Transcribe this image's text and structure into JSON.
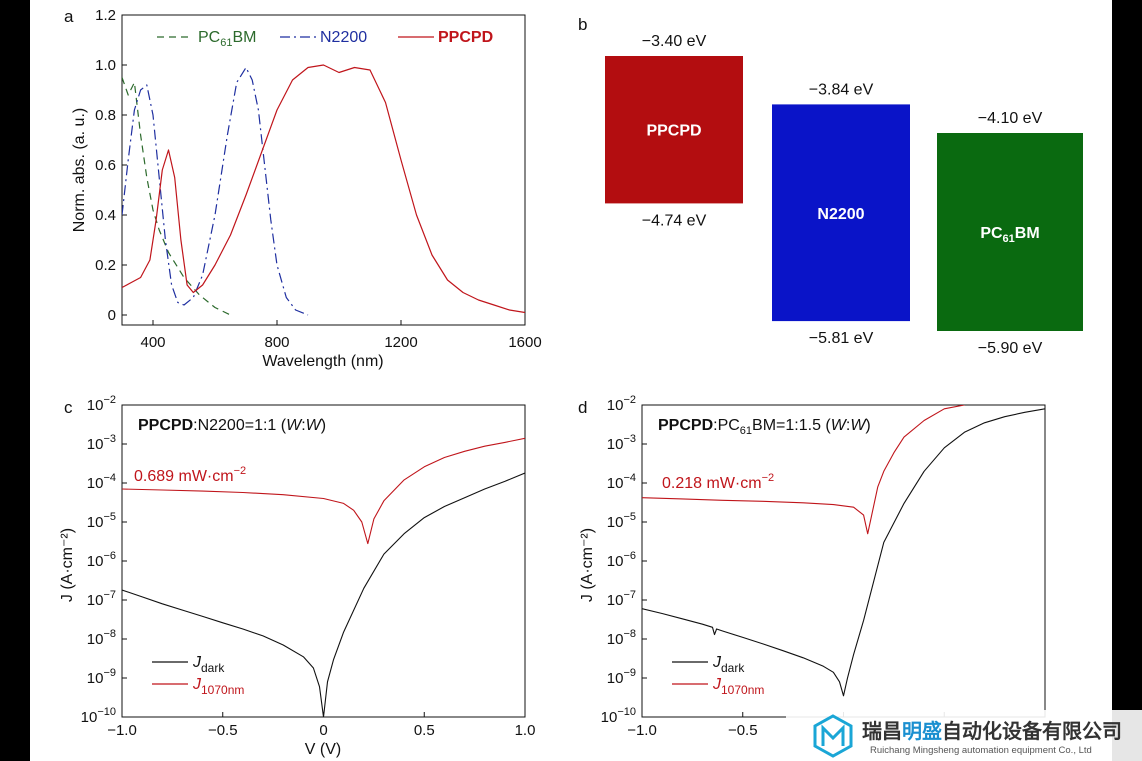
{
  "chart_data": [
    {
      "panel": "a",
      "type": "line",
      "xlabel": "Wavelength (nm)",
      "ylabel": "Norm. abs. (a. u.)",
      "xlim": [
        300,
        1600
      ],
      "ylim": [
        -0.04,
        1.2
      ],
      "xticks": [
        "400",
        "800",
        "1200",
        "1600"
      ],
      "yticks": [
        "0",
        "0.2",
        "0.4",
        "0.6",
        "0.8",
        "1.0",
        "1.2"
      ],
      "legend_position": "top",
      "series": [
        {
          "name": "PC",
          "sub": "61",
          "name_tail": "BM",
          "color": "#2c6a2c",
          "dash": "7,5",
          "x": [
            300,
            320,
            340,
            360,
            380,
            400,
            420,
            450,
            500,
            550,
            600,
            650
          ],
          "y": [
            0.95,
            0.88,
            0.93,
            0.72,
            0.55,
            0.42,
            0.34,
            0.25,
            0.15,
            0.08,
            0.03,
            0.0
          ]
        },
        {
          "name": "N2200",
          "color": "#1f2fa0",
          "dash": "10,4,2,4",
          "x": [
            300,
            320,
            340,
            360,
            380,
            400,
            420,
            440,
            460,
            480,
            500,
            530,
            560,
            600,
            640,
            670,
            700,
            720,
            740,
            760,
            780,
            800,
            830,
            860,
            900
          ],
          "y": [
            0.4,
            0.62,
            0.82,
            0.9,
            0.92,
            0.8,
            0.55,
            0.3,
            0.12,
            0.05,
            0.04,
            0.07,
            0.16,
            0.4,
            0.72,
            0.93,
            0.99,
            0.94,
            0.82,
            0.6,
            0.38,
            0.2,
            0.07,
            0.02,
            0.0
          ]
        },
        {
          "name": "PPCPD",
          "color": "#c0151b",
          "dash": "",
          "x": [
            300,
            330,
            360,
            390,
            410,
            430,
            450,
            470,
            490,
            510,
            530,
            560,
            600,
            650,
            700,
            750,
            800,
            850,
            900,
            950,
            1000,
            1050,
            1100,
            1150,
            1200,
            1250,
            1300,
            1350,
            1400,
            1450,
            1500,
            1550,
            1600
          ],
          "y": [
            0.11,
            0.13,
            0.15,
            0.22,
            0.38,
            0.58,
            0.66,
            0.55,
            0.3,
            0.12,
            0.09,
            0.12,
            0.2,
            0.32,
            0.48,
            0.65,
            0.82,
            0.94,
            0.99,
            1.0,
            0.97,
            0.99,
            0.98,
            0.85,
            0.62,
            0.4,
            0.24,
            0.14,
            0.09,
            0.06,
            0.04,
            0.02,
            0.01
          ]
        }
      ]
    },
    {
      "panel": "b",
      "type": "bar",
      "title": "",
      "ylim_eV": [
        -6.0,
        -3.2
      ],
      "levels": [
        {
          "name": "PPCPD",
          "top": -3.4,
          "bottom": -4.74,
          "top_label": "−3.40 eV",
          "bottom_label": "−4.74 eV",
          "color": "#b30d10"
        },
        {
          "name": "N2200",
          "top": -3.84,
          "bottom": -5.81,
          "top_label": "−3.84 eV",
          "bottom_label": "−5.81 eV",
          "color": "#0a14c8"
        },
        {
          "name": "PC",
          "sub": "61",
          "name_tail": "BM",
          "top": -4.1,
          "bottom": -5.9,
          "top_label": "−4.10 eV",
          "bottom_label": "−5.90 eV",
          "color": "#0a6a10"
        }
      ]
    },
    {
      "panel": "c",
      "type": "line",
      "yscale": "log",
      "xlabel": "V (V)",
      "ylabel": "J (A·cm⁻²)",
      "xlim": [
        -1.0,
        1.0
      ],
      "ylim_log10": [
        -10,
        -2
      ],
      "xticks": [
        "−1.0",
        "−0.5",
        "0",
        "0.5",
        "1.0"
      ],
      "blend_bold": "PPCPD",
      "blend_rest": ":N2200=1:1 (",
      "blend_italic1": "W",
      "blend_colon": ":",
      "blend_italic2": "W",
      "blend_close": ")",
      "intensity_label": "0.689 mW·cm",
      "intensity_exp": "−2",
      "legend_dark_main": "J",
      "legend_dark_sub": "dark",
      "legend_light_main": "J",
      "legend_light_sub": "1070nm",
      "series": [
        {
          "name": "J_dark",
          "color": "#111111",
          "x": [
            -1.0,
            -0.9,
            -0.8,
            -0.7,
            -0.6,
            -0.5,
            -0.4,
            -0.3,
            -0.2,
            -0.1,
            -0.05,
            -0.02,
            0.0,
            0.02,
            0.05,
            0.1,
            0.2,
            0.3,
            0.4,
            0.5,
            0.6,
            0.7,
            0.8,
            0.9,
            1.0
          ],
          "y": [
            1.8e-07,
            1.2e-07,
            8e-08,
            5.5e-08,
            3.8e-08,
            2.6e-08,
            1.8e-08,
            1.2e-08,
            7e-09,
            3.5e-09,
            1.8e-09,
            6e-10,
            1e-10,
            8e-10,
            3e-09,
            1.5e-08,
            2e-07,
            1.5e-06,
            5e-06,
            1.3e-05,
            2.5e-05,
            4.2e-05,
            7e-05,
            0.00011,
            0.00018
          ]
        },
        {
          "name": "J_1070nm",
          "color": "#c0151b",
          "x": [
            -1.0,
            -0.8,
            -0.6,
            -0.4,
            -0.2,
            0.0,
            0.1,
            0.15,
            0.19,
            0.22,
            0.25,
            0.3,
            0.4,
            0.5,
            0.6,
            0.7,
            0.8,
            0.9,
            1.0
          ],
          "y": [
            7e-05,
            6.6e-05,
            6.2e-05,
            5.7e-05,
            5e-05,
            4e-05,
            3e-05,
            2e-05,
            1e-05,
            2.8e-06,
            1.2e-05,
            3.5e-05,
            0.00012,
            0.00026,
            0.00045,
            0.00065,
            0.00088,
            0.0011,
            0.0014
          ]
        }
      ]
    },
    {
      "panel": "d",
      "type": "line",
      "yscale": "log",
      "xlabel": "V (V)",
      "ylabel": "J (A·cm⁻²)",
      "xlim": [
        -1.0,
        1.0
      ],
      "ylim_log10": [
        -10,
        -2
      ],
      "xticks": [
        "−1.0",
        "−0.5"
      ],
      "blend_bold": "PPCPD",
      "blend_rest": ":PC",
      "blend_sub": "61",
      "blend_rest2": "BM=1:1.5 (",
      "blend_italic1": "W",
      "blend_colon": ":",
      "blend_italic2": "W",
      "blend_close": ")",
      "intensity_label": "0.218 mW·cm",
      "intensity_exp": "−2",
      "legend_dark_main": "J",
      "legend_dark_sub": "dark",
      "legend_light_main": "J",
      "legend_light_sub": "1070nm",
      "series": [
        {
          "name": "J_dark",
          "color": "#111111",
          "x": [
            -1.0,
            -0.9,
            -0.8,
            -0.7,
            -0.65,
            -0.64,
            -0.63,
            -0.6,
            -0.5,
            -0.4,
            -0.3,
            -0.2,
            -0.1,
            -0.05,
            -0.02,
            0.0,
            0.02,
            0.05,
            0.1,
            0.15,
            0.2,
            0.3,
            0.4,
            0.5,
            0.6,
            0.7,
            0.8,
            0.9,
            1.0
          ],
          "y": [
            6e-08,
            4.5e-08,
            3.3e-08,
            2.4e-08,
            2e-08,
            1.3e-08,
            1.8e-08,
            1.6e-08,
            1.1e-08,
            7.5e-09,
            5e-09,
            3.3e-09,
            2e-09,
            1.4e-09,
            8e-10,
            3.5e-10,
            1e-09,
            4e-09,
            3e-08,
            3e-07,
            3e-06,
            3e-05,
            0.0002,
            0.0008,
            0.002,
            0.0035,
            0.005,
            0.0065,
            0.008
          ]
        },
        {
          "name": "J_1070nm",
          "color": "#c0151b",
          "x": [
            -1.0,
            -0.8,
            -0.6,
            -0.4,
            -0.2,
            -0.05,
            0.05,
            0.1,
            0.12,
            0.14,
            0.17,
            0.2,
            0.25,
            0.3,
            0.4,
            0.5,
            0.6
          ],
          "y": [
            4.2e-05,
            3.9e-05,
            3.6e-05,
            3.4e-05,
            3.1e-05,
            2.8e-05,
            2.4e-05,
            1.5e-05,
            5e-06,
            1.5e-05,
            8e-05,
            0.0002,
            0.0006,
            0.0015,
            0.004,
            0.008,
            0.01
          ]
        }
      ]
    }
  ],
  "panel_labels": [
    "a",
    "b",
    "c",
    "d"
  ],
  "watermark": {
    "company_main": "瑞昌",
    "company_highlight": "明盛",
    "company_rest": "自动化设备有限公司",
    "company_en": "Ruichang Mingsheng automation equipment Co., Ltd",
    "logo_icon": "hexagon-m-logo"
  }
}
